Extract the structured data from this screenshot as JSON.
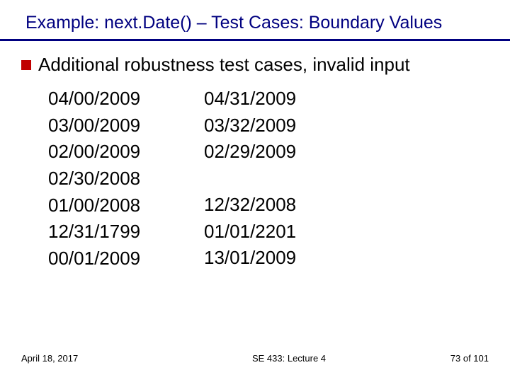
{
  "title": "Example: next.Date() – Test Cases: Boundary Values",
  "bullet": "Additional robustness test cases, invalid input",
  "col1": {
    "r1": "04/00/2009",
    "r2": "03/00/2009",
    "r3": "02/00/2009",
    "r4": "02/30/2008",
    "r5": "01/00/2008",
    "r6": "12/31/1799",
    "r7": "00/01/2009"
  },
  "col2": {
    "r1": "04/31/2009",
    "r2": "03/32/2009",
    "r3": "02/29/2009",
    "r5": "12/32/2008",
    "r6": "01/01/2201",
    "r7": "13/01/2009"
  },
  "footer": {
    "date": "April 18, 2017",
    "course": "SE 433: Lecture 4",
    "page": "73 of 101"
  },
  "colors": {
    "title": "#000080",
    "underline": "#000080",
    "bullet": "#c00000",
    "text": "#000000",
    "background": "#ffffff"
  },
  "fonts": {
    "title_size": 25,
    "body_size": 26,
    "footer_size": 13
  }
}
